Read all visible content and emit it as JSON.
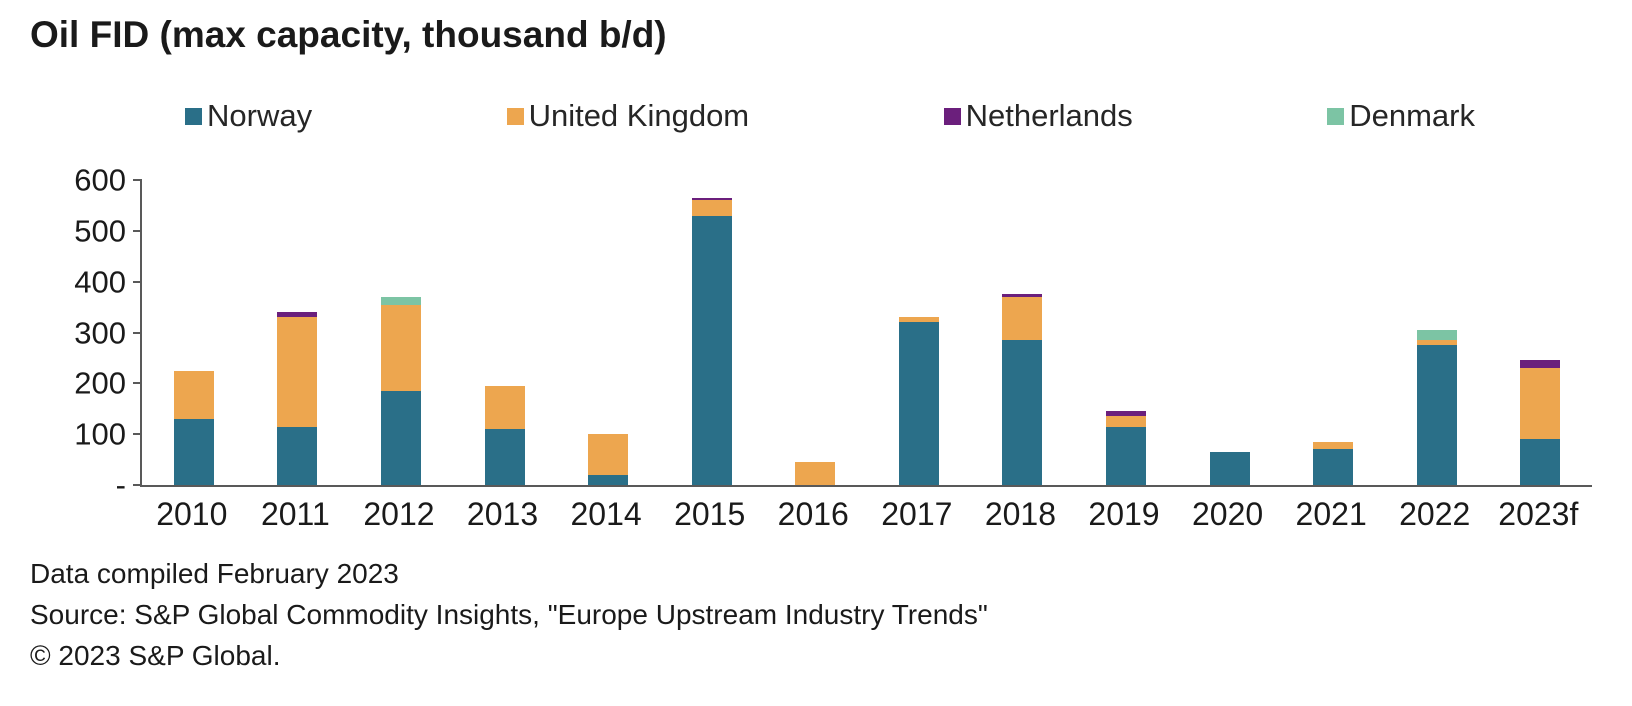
{
  "chart_data": {
    "type": "bar",
    "stacked": true,
    "title": "Oil FID (max capacity, thousand b/d)",
    "categories": [
      "2010",
      "2011",
      "2012",
      "2013",
      "2014",
      "2015",
      "2016",
      "2017",
      "2018",
      "2019",
      "2020",
      "2021",
      "2022",
      "2023f"
    ],
    "series": [
      {
        "name": "Norway",
        "color": "#2a6f88",
        "values": [
          130,
          115,
          185,
          110,
          20,
          530,
          0,
          320,
          285,
          115,
          65,
          70,
          275,
          90
        ]
      },
      {
        "name": "United Kingdom",
        "color": "#eda64f",
        "values": [
          95,
          215,
          170,
          85,
          80,
          30,
          45,
          10,
          85,
          20,
          0,
          15,
          10,
          140
        ]
      },
      {
        "name": "Netherlands",
        "color": "#6b1f7c",
        "values": [
          0,
          10,
          0,
          0,
          0,
          5,
          0,
          0,
          5,
          10,
          0,
          0,
          0,
          15
        ]
      },
      {
        "name": "Denmark",
        "color": "#7cc4a4",
        "values": [
          0,
          0,
          15,
          0,
          0,
          0,
          0,
          0,
          0,
          0,
          0,
          0,
          20,
          0
        ]
      }
    ],
    "ylim": [
      0,
      600
    ],
    "y_ticks": [
      "600",
      "500",
      "400",
      "300",
      "200",
      "100",
      "-"
    ],
    "y_tick_values": [
      600,
      500,
      400,
      300,
      200,
      100,
      0
    ],
    "xlabel": "",
    "ylabel": "",
    "legend_position": "top",
    "grid": false,
    "axis_color": "#595959"
  },
  "footer": {
    "line1": "Data compiled February 2023",
    "line2": "Source: S&P Global Commodity Insights, \"Europe Upstream Industry Trends\"",
    "line3": "© 2023 S&P Global."
  }
}
